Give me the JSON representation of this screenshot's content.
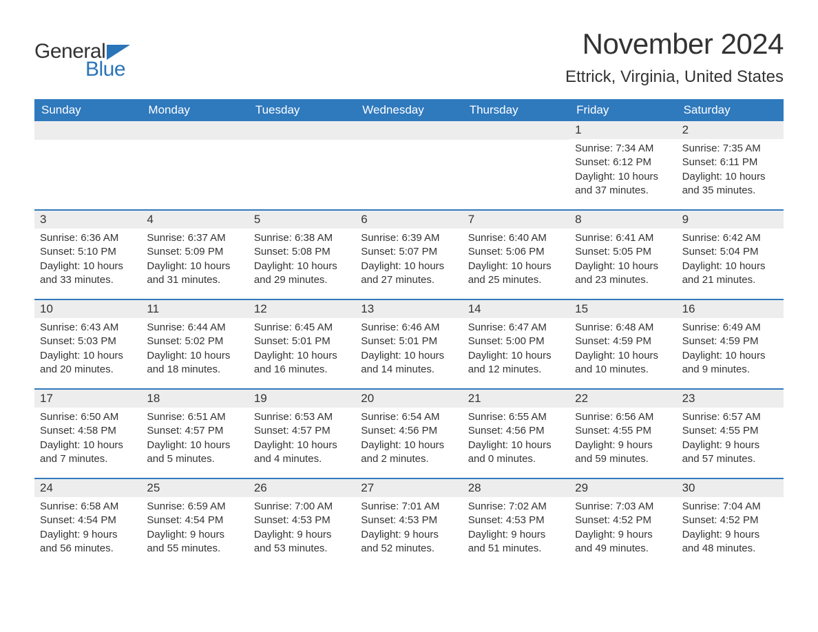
{
  "brand": {
    "general": "General",
    "blue": "Blue"
  },
  "title": "November 2024",
  "location": "Ettrick, Virginia, United States",
  "colors": {
    "header_bg": "#2f79bd",
    "header_text": "#ffffff",
    "daynum_bg": "#ededed",
    "body_text": "#333333",
    "week_border": "#2f79bd",
    "accent": "#2a74b8",
    "page_bg": "#ffffff"
  },
  "layout": {
    "cols": 7,
    "rows": 5,
    "title_fontsize": 42,
    "location_fontsize": 24,
    "dow_fontsize": 17,
    "daynum_fontsize": 17,
    "body_fontsize": 15
  },
  "dow": [
    "Sunday",
    "Monday",
    "Tuesday",
    "Wednesday",
    "Thursday",
    "Friday",
    "Saturday"
  ],
  "weeks": [
    [
      null,
      null,
      null,
      null,
      null,
      {
        "n": "1",
        "sunrise": "7:34 AM",
        "sunset": "6:12 PM",
        "daylight": "10 hours and 37 minutes."
      },
      {
        "n": "2",
        "sunrise": "7:35 AM",
        "sunset": "6:11 PM",
        "daylight": "10 hours and 35 minutes."
      }
    ],
    [
      {
        "n": "3",
        "sunrise": "6:36 AM",
        "sunset": "5:10 PM",
        "daylight": "10 hours and 33 minutes."
      },
      {
        "n": "4",
        "sunrise": "6:37 AM",
        "sunset": "5:09 PM",
        "daylight": "10 hours and 31 minutes."
      },
      {
        "n": "5",
        "sunrise": "6:38 AM",
        "sunset": "5:08 PM",
        "daylight": "10 hours and 29 minutes."
      },
      {
        "n": "6",
        "sunrise": "6:39 AM",
        "sunset": "5:07 PM",
        "daylight": "10 hours and 27 minutes."
      },
      {
        "n": "7",
        "sunrise": "6:40 AM",
        "sunset": "5:06 PM",
        "daylight": "10 hours and 25 minutes."
      },
      {
        "n": "8",
        "sunrise": "6:41 AM",
        "sunset": "5:05 PM",
        "daylight": "10 hours and 23 minutes."
      },
      {
        "n": "9",
        "sunrise": "6:42 AM",
        "sunset": "5:04 PM",
        "daylight": "10 hours and 21 minutes."
      }
    ],
    [
      {
        "n": "10",
        "sunrise": "6:43 AM",
        "sunset": "5:03 PM",
        "daylight": "10 hours and 20 minutes."
      },
      {
        "n": "11",
        "sunrise": "6:44 AM",
        "sunset": "5:02 PM",
        "daylight": "10 hours and 18 minutes."
      },
      {
        "n": "12",
        "sunrise": "6:45 AM",
        "sunset": "5:01 PM",
        "daylight": "10 hours and 16 minutes."
      },
      {
        "n": "13",
        "sunrise": "6:46 AM",
        "sunset": "5:01 PM",
        "daylight": "10 hours and 14 minutes."
      },
      {
        "n": "14",
        "sunrise": "6:47 AM",
        "sunset": "5:00 PM",
        "daylight": "10 hours and 12 minutes."
      },
      {
        "n": "15",
        "sunrise": "6:48 AM",
        "sunset": "4:59 PM",
        "daylight": "10 hours and 10 minutes."
      },
      {
        "n": "16",
        "sunrise": "6:49 AM",
        "sunset": "4:59 PM",
        "daylight": "10 hours and 9 minutes."
      }
    ],
    [
      {
        "n": "17",
        "sunrise": "6:50 AM",
        "sunset": "4:58 PM",
        "daylight": "10 hours and 7 minutes."
      },
      {
        "n": "18",
        "sunrise": "6:51 AM",
        "sunset": "4:57 PM",
        "daylight": "10 hours and 5 minutes."
      },
      {
        "n": "19",
        "sunrise": "6:53 AM",
        "sunset": "4:57 PM",
        "daylight": "10 hours and 4 minutes."
      },
      {
        "n": "20",
        "sunrise": "6:54 AM",
        "sunset": "4:56 PM",
        "daylight": "10 hours and 2 minutes."
      },
      {
        "n": "21",
        "sunrise": "6:55 AM",
        "sunset": "4:56 PM",
        "daylight": "10 hours and 0 minutes."
      },
      {
        "n": "22",
        "sunrise": "6:56 AM",
        "sunset": "4:55 PM",
        "daylight": "9 hours and 59 minutes."
      },
      {
        "n": "23",
        "sunrise": "6:57 AM",
        "sunset": "4:55 PM",
        "daylight": "9 hours and 57 minutes."
      }
    ],
    [
      {
        "n": "24",
        "sunrise": "6:58 AM",
        "sunset": "4:54 PM",
        "daylight": "9 hours and 56 minutes."
      },
      {
        "n": "25",
        "sunrise": "6:59 AM",
        "sunset": "4:54 PM",
        "daylight": "9 hours and 55 minutes."
      },
      {
        "n": "26",
        "sunrise": "7:00 AM",
        "sunset": "4:53 PM",
        "daylight": "9 hours and 53 minutes."
      },
      {
        "n": "27",
        "sunrise": "7:01 AM",
        "sunset": "4:53 PM",
        "daylight": "9 hours and 52 minutes."
      },
      {
        "n": "28",
        "sunrise": "7:02 AM",
        "sunset": "4:53 PM",
        "daylight": "9 hours and 51 minutes."
      },
      {
        "n": "29",
        "sunrise": "7:03 AM",
        "sunset": "4:52 PM",
        "daylight": "9 hours and 49 minutes."
      },
      {
        "n": "30",
        "sunrise": "7:04 AM",
        "sunset": "4:52 PM",
        "daylight": "9 hours and 48 minutes."
      }
    ]
  ],
  "labels": {
    "sunrise": "Sunrise: ",
    "sunset": "Sunset: ",
    "daylight": "Daylight: "
  }
}
